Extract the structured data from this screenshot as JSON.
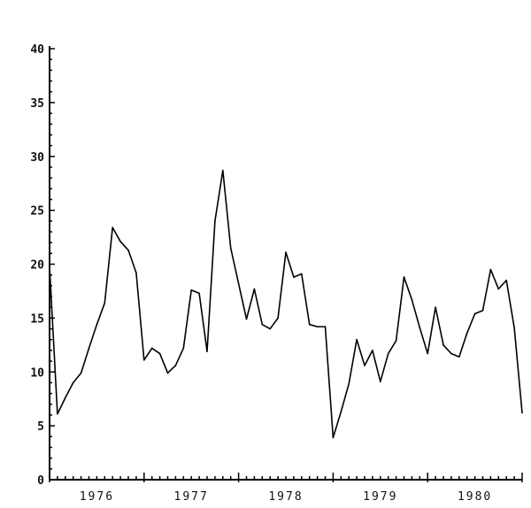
{
  "chart_data": {
    "type": "line",
    "title": "",
    "xlabel": "",
    "ylabel": "",
    "xlim": [
      1976,
      1981
    ],
    "ylim": [
      0,
      40
    ],
    "grid": false,
    "y_ticks": [
      "0",
      "5",
      "10",
      "15",
      "20",
      "25",
      "30",
      "35",
      "40"
    ],
    "x_tick_labels": [
      "1976",
      "1977",
      "1978",
      "1979",
      "1980"
    ],
    "x_frequency": "monthly",
    "x_start": "1976-01",
    "series": [
      {
        "color": "#000000",
        "values": [
          19.8,
          6.1,
          7.6,
          9.0,
          9.9,
          12.2,
          14.4,
          16.4,
          23.4,
          22.1,
          21.3,
          19.2,
          11.1,
          12.2,
          11.7,
          9.9,
          10.6,
          12.2,
          17.6,
          17.3,
          11.9,
          24.0,
          28.7,
          21.5,
          18.2,
          14.9,
          17.7,
          14.4,
          14.0,
          15.0,
          21.1,
          18.8,
          19.1,
          14.4,
          14.2,
          14.2,
          3.9,
          6.3,
          8.9,
          13.0,
          10.6,
          12.0,
          9.1,
          11.7,
          12.9,
          18.8,
          16.7,
          14.1,
          11.7,
          16.0,
          12.5,
          11.7,
          11.4,
          13.6,
          15.4,
          15.7,
          19.5,
          17.7,
          18.5,
          14.1,
          6.2
        ]
      }
    ]
  }
}
